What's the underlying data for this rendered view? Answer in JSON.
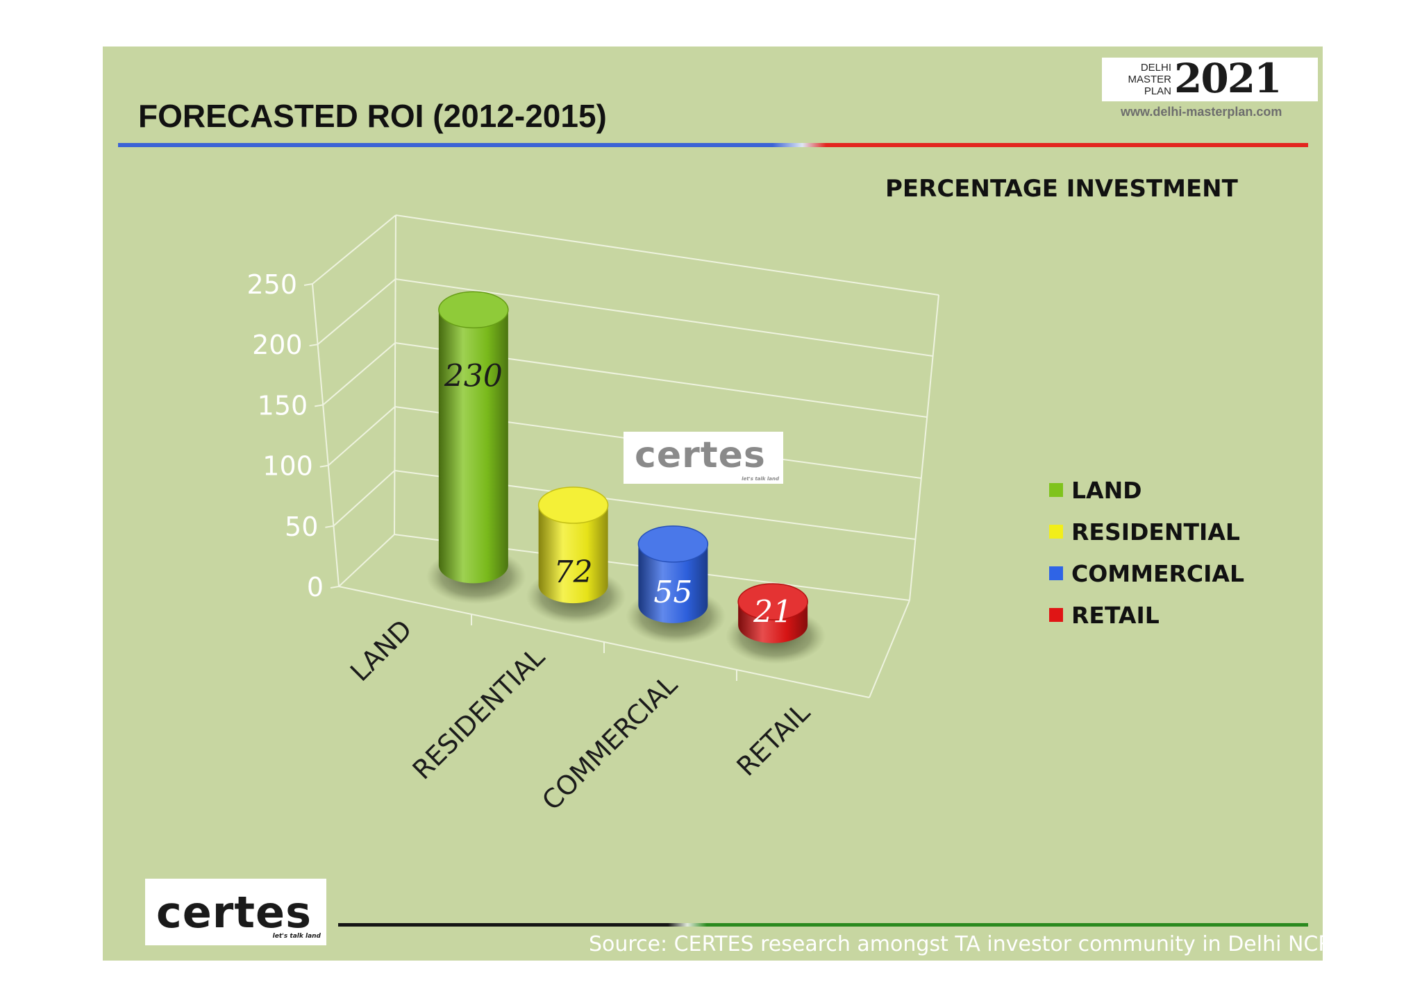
{
  "slide": {
    "title": "FORECASTED ROI (2012-2015)",
    "subtitle": "PERCENTAGE INVESTMENT",
    "source": "Source: CERTES research amongst TA investor community in Delhi NCR"
  },
  "logo": {
    "line1": "DELHI",
    "line2": "MASTER",
    "line3": "PLAN",
    "year": "2021",
    "url": "www.delhi-masterplan.com"
  },
  "certes": {
    "word": "certes",
    "tagline": "let's talk land"
  },
  "colors": {
    "background": "#c7d6a1",
    "land": "#7fc31c",
    "residential": "#f2ee1a",
    "commercial": "#2f64e6",
    "retail": "#e01515"
  },
  "chart_data": {
    "type": "bar",
    "style": "3d-cylinder",
    "categories": [
      "LAND",
      "RESIDENTIAL",
      "COMMERCIAL",
      "RETAIL"
    ],
    "values": [
      230,
      72,
      55,
      21
    ],
    "data_labels": [
      "230",
      "72",
      "55",
      "21"
    ],
    "yticks": [
      "0",
      "50",
      "100",
      "150",
      "200",
      "250"
    ],
    "ylim": [
      0,
      250
    ],
    "grid": true,
    "legend": {
      "position": "right",
      "entries": [
        "LAND",
        "RESIDENTIAL",
        "COMMERCIAL",
        "RETAIL"
      ]
    }
  }
}
